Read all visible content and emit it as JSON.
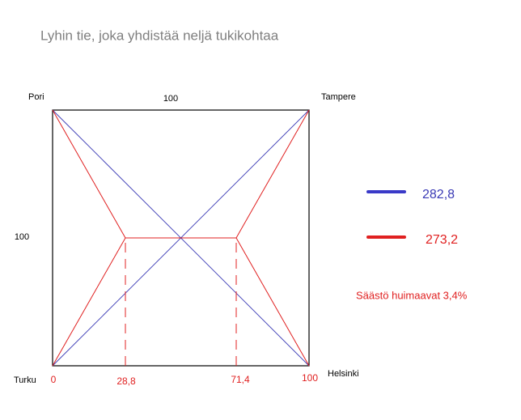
{
  "title": "Lyhin tie, joka yhdistää neljä tukikohtaa",
  "nodes": [
    {
      "label": "Pori"
    },
    {
      "label": "Tampere"
    },
    {
      "label": "Turku"
    },
    {
      "label": "Helsinki"
    }
  ],
  "side_labels": {
    "top": "100",
    "left": "100"
  },
  "bottom_labels": [
    "0",
    "28,8",
    "71,4",
    "100"
  ],
  "legend": [
    {
      "value": "282,8"
    },
    {
      "value": "273,2"
    }
  ],
  "note": "Säästö huimaavat 3,4%"
}
